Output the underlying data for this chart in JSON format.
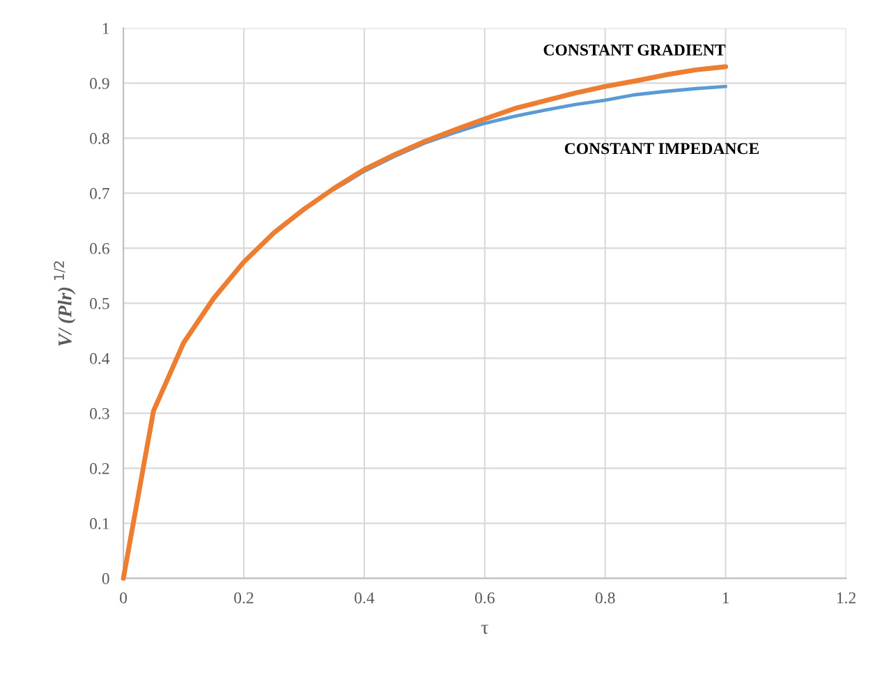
{
  "chart_data": {
    "type": "line",
    "xlabel": "τ",
    "ylabel": "V/ (Plr) $^{1/2}$",
    "x": [
      0,
      0.05,
      0.1,
      0.15,
      0.2,
      0.25,
      0.3,
      0.35,
      0.4,
      0.45,
      0.5,
      0.55,
      0.6,
      0.65,
      0.7,
      0.75,
      0.8,
      0.85,
      0.9,
      0.95,
      1.0
    ],
    "series": [
      {
        "name": "CONSTANT IMPEDANCE",
        "color": "#5b9bd5",
        "values": [
          null,
          null,
          null,
          null,
          null,
          null,
          null,
          0.707,
          0.74,
          0.767,
          0.791,
          0.81,
          0.827,
          0.84,
          0.851,
          0.861,
          0.869,
          0.879,
          0.885,
          0.89,
          0.894
        ]
      },
      {
        "name": "CONSTANT GRADIENT",
        "color": "#ed7d31",
        "values": [
          0,
          0.304,
          0.428,
          0.509,
          0.575,
          0.628,
          0.671,
          0.709,
          0.743,
          0.77,
          0.794,
          0.815,
          0.835,
          0.854,
          0.868,
          0.882,
          0.894,
          0.904,
          0.915,
          0.924,
          0.93
        ]
      }
    ],
    "xlim": [
      0,
      1.2
    ],
    "xticks": [
      0,
      0.2,
      0.4,
      0.6,
      0.8,
      1,
      1.2
    ],
    "ylim": [
      0,
      1
    ],
    "yticks": [
      0,
      0.1,
      0.2,
      0.3,
      0.4,
      0.5,
      0.6,
      0.7,
      0.8,
      0.9,
      1
    ],
    "grid": true,
    "legend": false,
    "marker": "none",
    "line_style": "solid"
  }
}
